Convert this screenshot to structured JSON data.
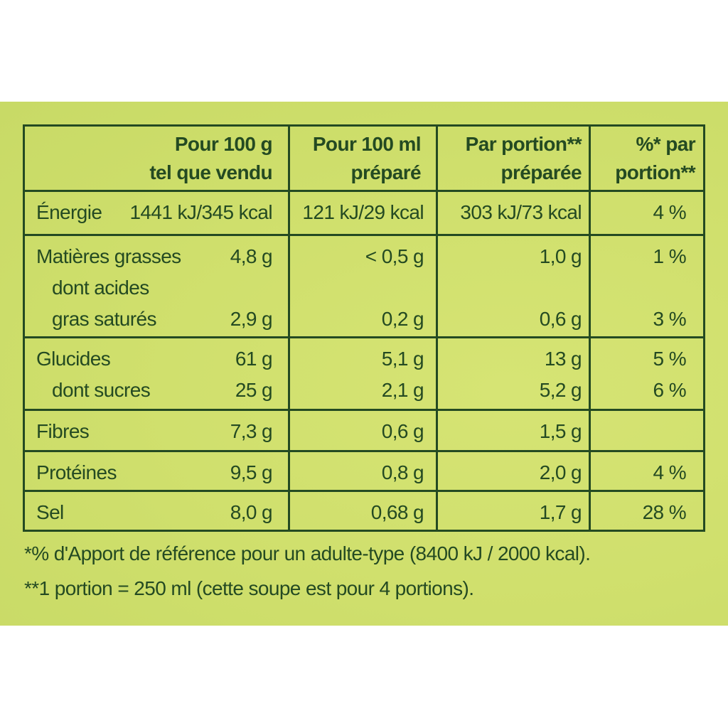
{
  "table": {
    "header": [
      [
        "Pour 100 g",
        "tel que vendu"
      ],
      [
        "Pour 100 ml",
        "préparé"
      ],
      [
        "Par portion**",
        "préparée"
      ],
      [
        "%* par",
        "portion**"
      ]
    ],
    "sections": [
      {
        "lines": [
          {
            "label": "Énergie",
            "values": [
              "1441 kJ/345 kcal",
              "121 kJ/29 kcal",
              "303 kJ/73 kcal",
              "4 %"
            ]
          }
        ]
      },
      {
        "lines": [
          {
            "label": "Matières grasses",
            "values": [
              "4,8 g",
              "< 0,5 g",
              "1,0 g",
              "1 %"
            ]
          },
          {
            "label": "dont acides",
            "sub": true
          },
          {
            "label": "gras saturés",
            "sub": true,
            "values": [
              "2,9 g",
              "0,2 g",
              "0,6 g",
              "3 %"
            ]
          }
        ]
      },
      {
        "lines": [
          {
            "label": "Glucides",
            "values": [
              "61 g",
              "5,1 g",
              "13 g",
              "5 %"
            ]
          },
          {
            "label": "dont sucres",
            "sub": true,
            "values": [
              "25 g",
              "2,1 g",
              "5,2 g",
              "6 %"
            ]
          }
        ]
      },
      {
        "lines": [
          {
            "label": "Fibres",
            "values": [
              "7,3 g",
              "0,6 g",
              "1,5 g",
              null
            ]
          }
        ]
      },
      {
        "lines": [
          {
            "label": "Protéines",
            "values": [
              "9,5 g",
              "0,8 g",
              "2,0 g",
              "4 %"
            ]
          }
        ]
      },
      {
        "lines": [
          {
            "label": "Sel",
            "values": [
              "8,0 g",
              "0,68 g",
              "1,7 g",
              "28 %"
            ]
          }
        ]
      }
    ],
    "footnotes": [
      "*% d'Apport de référence pour un adulte-type (8400 kJ / 2000 kcal).",
      "**1 portion = 250 ml (cette soupe est pour 4 portions)."
    ]
  }
}
